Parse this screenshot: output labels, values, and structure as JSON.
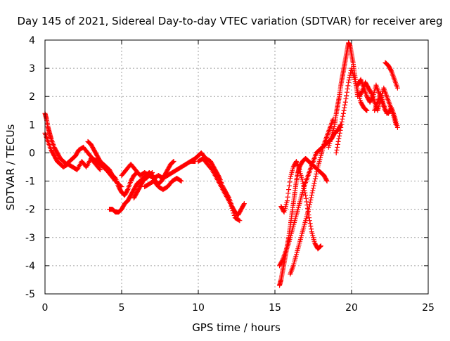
{
  "chart_data": {
    "type": "scatter",
    "title": "Day 145 of 2021, Sidereal Day-to-day VTEC variation (SDTVAR) for receiver areg",
    "xlabel": "GPS time / hours",
    "ylabel": "SDTVAR / TECUs",
    "xlim": [
      0,
      25
    ],
    "ylim": [
      -5,
      4
    ],
    "xticks": [
      0,
      5,
      10,
      15,
      20,
      25
    ],
    "yticks": [
      -5,
      -4,
      -3,
      -2,
      -1,
      0,
      1,
      2,
      3,
      4
    ],
    "grid": true,
    "marker": "+",
    "series": [
      {
        "name": "SDTVAR",
        "color": "#ff0000",
        "segments": [
          {
            "x": [
              0.0,
              0.1,
              0.2,
              0.3,
              0.4,
              0.6,
              0.8,
              1.0,
              1.2,
              1.4,
              1.6,
              1.8,
              2.0,
              2.2,
              2.5,
              2.8,
              3.1,
              3.4,
              3.6,
              3.8,
              4.0,
              4.3,
              4.6,
              5.0
            ],
            "y": [
              1.4,
              1.2,
              0.9,
              0.7,
              0.5,
              0.2,
              0.0,
              -0.2,
              -0.3,
              -0.4,
              -0.3,
              -0.2,
              -0.1,
              0.1,
              0.2,
              0.0,
              -0.2,
              -0.3,
              -0.4,
              -0.5,
              -0.6,
              -0.8,
              -1.0,
              -1.2
            ]
          },
          {
            "x": [
              0.0,
              0.2,
              0.4,
              0.6,
              0.8,
              1.0,
              1.2,
              1.5,
              1.8,
              2.1,
              2.4,
              2.7,
              3.0,
              3.3,
              3.6
            ],
            "y": [
              0.7,
              0.4,
              0.1,
              -0.1,
              -0.3,
              -0.4,
              -0.5,
              -0.4,
              -0.5,
              -0.6,
              -0.3,
              -0.5,
              -0.2,
              -0.4,
              -0.6
            ]
          },
          {
            "x": [
              2.8,
              3.0,
              3.2,
              3.4,
              3.6,
              3.8,
              4.0,
              4.2,
              4.4,
              4.6,
              4.8,
              5.0,
              5.2,
              5.4,
              5.6,
              5.8,
              6.0
            ],
            "y": [
              0.4,
              0.3,
              0.1,
              -0.1,
              -0.3,
              -0.4,
              -0.5,
              -0.6,
              -0.8,
              -0.9,
              -1.2,
              -1.4,
              -1.5,
              -1.3,
              -1.0,
              -0.8,
              -0.7
            ]
          },
          {
            "x": [
              4.2,
              4.4,
              4.6,
              4.8,
              5.0,
              5.2,
              5.4,
              5.6,
              5.8,
              6.0,
              6.2,
              6.4,
              6.6,
              6.8,
              7.0
            ],
            "y": [
              -2.0,
              -2.0,
              -2.1,
              -2.1,
              -2.0,
              -1.8,
              -1.7,
              -1.5,
              -1.3,
              -1.1,
              -1.0,
              -0.9,
              -0.9,
              -0.8,
              -0.7
            ]
          },
          {
            "x": [
              5.0,
              5.3,
              5.6,
              5.9,
              6.2,
              6.5,
              6.8,
              7.1,
              7.4,
              7.7,
              8.0,
              8.3,
              8.6,
              8.9,
              9.2,
              9.5,
              9.8
            ],
            "y": [
              -0.8,
              -0.6,
              -0.4,
              -0.6,
              -0.8,
              -0.7,
              -0.8,
              -0.9,
              -0.8,
              -0.9,
              -0.8,
              -0.7,
              -0.6,
              -0.5,
              -0.4,
              -0.3,
              -0.3
            ]
          },
          {
            "x": [
              5.8,
              6.0,
              6.2,
              6.4,
              6.6,
              6.8,
              7.0,
              7.2,
              7.4,
              7.6,
              7.8,
              8.0,
              8.2,
              8.4
            ],
            "y": [
              -1.6,
              -1.4,
              -1.2,
              -1.0,
              -0.8,
              -0.7,
              -0.8,
              -1.0,
              -1.1,
              -1.0,
              -0.8,
              -0.6,
              -0.4,
              -0.3
            ]
          },
          {
            "x": [
              6.5,
              6.8,
              7.1,
              7.4,
              7.7,
              8.0,
              8.3,
              8.6,
              8.9
            ],
            "y": [
              -1.2,
              -1.1,
              -1.0,
              -1.2,
              -1.3,
              -1.2,
              -1.0,
              -0.9,
              -1.0
            ]
          },
          {
            "x": [
              9.5,
              9.8,
              10.0,
              10.2,
              10.5,
              10.8,
              11.0,
              11.2,
              11.4,
              11.6,
              11.8,
              12.0,
              12.2,
              12.4,
              12.6,
              12.8,
              13.0
            ],
            "y": [
              -0.3,
              -0.2,
              -0.1,
              0.0,
              -0.2,
              -0.3,
              -0.5,
              -0.7,
              -0.9,
              -1.2,
              -1.4,
              -1.6,
              -1.9,
              -2.1,
              -2.2,
              -2.0,
              -1.8
            ]
          },
          {
            "x": [
              10.0,
              10.3,
              10.6,
              10.9,
              11.2,
              11.5,
              11.8,
              12.1,
              12.4,
              12.7
            ],
            "y": [
              -0.3,
              -0.2,
              -0.4,
              -0.6,
              -0.9,
              -1.2,
              -1.5,
              -1.8,
              -2.3,
              -2.4
            ]
          },
          {
            "x": [
              15.3,
              15.4,
              15.5,
              15.6,
              15.7,
              15.8,
              15.9,
              16.0,
              16.1,
              16.2,
              16.3,
              16.4,
              16.5,
              16.6,
              16.8,
              17.0,
              17.2,
              17.4,
              17.6,
              17.8,
              18.0,
              18.2,
              18.4
            ],
            "y": [
              -4.7,
              -4.5,
              -4.2,
              -3.9,
              -3.6,
              -3.3,
              -3.0,
              -2.6,
              -2.2,
              -1.8,
              -1.4,
              -1.0,
              -0.7,
              -0.5,
              -0.3,
              -0.2,
              -0.3,
              -0.4,
              -0.5,
              -0.6,
              -0.7,
              -0.8,
              -1.0
            ]
          },
          {
            "x": [
              15.3,
              15.5,
              15.7,
              15.9,
              16.1,
              16.3,
              16.5,
              16.7,
              16.9,
              17.1,
              17.3,
              17.5,
              17.7,
              17.9,
              18.1,
              18.3,
              18.5,
              18.7,
              18.9,
              19.1,
              19.3
            ],
            "y": [
              -4.0,
              -3.8,
              -3.5,
              -3.2,
              -2.8,
              -2.4,
              -2.0,
              -1.6,
              -1.2,
              -0.9,
              -0.6,
              -0.3,
              0.0,
              0.1,
              0.2,
              0.3,
              0.4,
              0.5,
              0.7,
              0.8,
              1.0
            ]
          },
          {
            "x": [
              15.4,
              15.6,
              15.8,
              16.0,
              16.2,
              16.4,
              16.6,
              16.8,
              17.0,
              17.2,
              17.4,
              17.6,
              17.8,
              18.0
            ],
            "y": [
              -1.9,
              -2.1,
              -1.7,
              -0.9,
              -0.5,
              -0.3,
              -0.6,
              -1.0,
              -1.5,
              -2.2,
              -2.8,
              -3.2,
              -3.4,
              -3.3
            ]
          },
          {
            "x": [
              16.0,
              16.2,
              16.4,
              16.6,
              16.8,
              17.0,
              17.2,
              17.4,
              17.6,
              17.8,
              18.0,
              18.2,
              18.4,
              18.6,
              18.8
            ],
            "y": [
              -4.3,
              -4.0,
              -3.6,
              -3.2,
              -2.8,
              -2.4,
              -2.0,
              -1.5,
              -1.0,
              -0.5,
              -0.1,
              0.3,
              0.6,
              0.9,
              1.2
            ]
          },
          {
            "x": [
              18.5,
              18.7,
              18.9,
              19.0,
              19.1,
              19.2,
              19.3,
              19.4,
              19.5,
              19.6,
              19.7,
              19.8,
              19.9,
              20.0,
              20.1,
              20.2,
              20.3,
              20.4
            ],
            "y": [
              0.2,
              0.6,
              1.0,
              1.4,
              1.7,
              2.0,
              2.4,
              2.7,
              3.0,
              3.3,
              3.6,
              3.9,
              3.8,
              3.5,
              3.2,
              2.8,
              2.4,
              2.0
            ]
          },
          {
            "x": [
              19.0,
              19.2,
              19.4,
              19.6,
              19.8,
              20.0,
              20.2,
              20.4,
              20.6,
              20.8,
              21.0
            ],
            "y": [
              0.0,
              0.6,
              1.2,
              1.8,
              2.5,
              3.0,
              2.6,
              2.2,
              1.8,
              1.6,
              1.5
            ]
          },
          {
            "x": [
              20.4,
              20.6,
              20.8,
              21.0,
              21.2,
              21.4,
              21.6,
              21.8,
              22.0,
              22.2,
              22.4,
              22.6,
              22.8,
              23.0
            ],
            "y": [
              2.4,
              2.6,
              2.3,
              2.0,
              1.8,
              2.0,
              2.4,
              2.1,
              1.8,
              1.5,
              1.4,
              1.6,
              1.3,
              0.9
            ]
          },
          {
            "x": [
              20.5,
              20.7,
              20.9,
              21.1,
              21.3,
              21.5,
              21.7,
              21.9,
              22.1,
              22.3,
              22.5,
              22.7,
              22.9
            ],
            "y": [
              2.0,
              2.2,
              2.5,
              2.3,
              2.1,
              1.8,
              1.5,
              1.9,
              2.3,
              2.0,
              1.7,
              1.4,
              1.0
            ]
          },
          {
            "x": [
              21.5,
              21.7,
              21.9,
              22.1,
              22.3
            ],
            "y": [
              1.5,
              1.8,
              2.1,
              1.7,
              1.4
            ]
          },
          {
            "x": [
              22.2,
              22.4,
              22.6,
              22.8,
              23.0
            ],
            "y": [
              3.2,
              3.1,
              2.9,
              2.6,
              2.3
            ]
          }
        ]
      }
    ]
  }
}
